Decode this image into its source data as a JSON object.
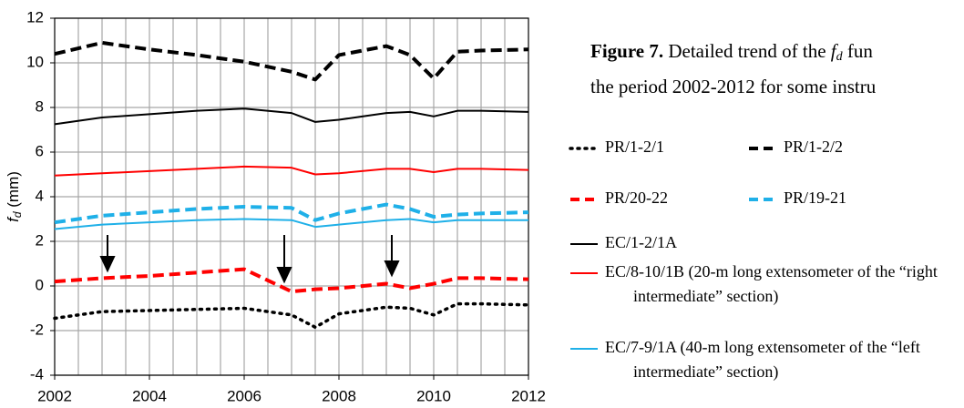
{
  "chart_data": {
    "type": "line",
    "caption": {
      "label": "Figure 7.",
      "text": " Detailed trend of the ",
      "symbol": "f",
      "subscript": "d",
      "text_end": " fun",
      "line2": "the period 2002-2012 for some instru"
    },
    "ylabel": {
      "symbol": "f",
      "subscript": "d",
      "unit": " (mm)"
    },
    "x": [
      2002,
      2003,
      2004,
      2005,
      2006,
      2007,
      2007.5,
      2008,
      2009,
      2009.5,
      2010,
      2010.5,
      2011,
      2012
    ],
    "series": [
      {
        "name": "PR/1-2/1",
        "color": "#000000",
        "dash": "dotted",
        "values": [
          -1.45,
          -1.15,
          -1.1,
          -1.05,
          -1.0,
          -1.3,
          -1.85,
          -1.25,
          -0.95,
          -1.0,
          -1.3,
          -0.8,
          -0.8,
          -0.85
        ]
      },
      {
        "name": "PR/1-2/2",
        "color": "#000000",
        "dash": "dashed",
        "values": [
          10.4,
          10.9,
          10.6,
          10.35,
          10.05,
          9.6,
          9.25,
          10.35,
          10.75,
          10.35,
          9.3,
          10.5,
          10.55,
          10.6
        ]
      },
      {
        "name": "PR/20-22",
        "color": "#ff0000",
        "dash": "dashed",
        "values": [
          0.2,
          0.35,
          0.45,
          0.6,
          0.75,
          -0.25,
          -0.15,
          -0.1,
          0.1,
          -0.1,
          0.1,
          0.35,
          0.35,
          0.3
        ]
      },
      {
        "name": "PR/19-21",
        "color": "#1fb0e8",
        "dash": "dashed",
        "values": [
          2.85,
          3.15,
          3.3,
          3.45,
          3.55,
          3.5,
          2.95,
          3.25,
          3.65,
          3.45,
          3.1,
          3.2,
          3.25,
          3.3
        ]
      },
      {
        "name": "EC/1-2/1A",
        "color": "#000000",
        "dash": "solid",
        "values": [
          7.25,
          7.55,
          7.7,
          7.85,
          7.95,
          7.75,
          7.35,
          7.45,
          7.75,
          7.8,
          7.6,
          7.85,
          7.85,
          7.8
        ]
      },
      {
        "name": "EC/8-10/1B (20-m long extensometer of the “right intermediate” section)",
        "color": "#ff0000",
        "dash": "solid",
        "values": [
          4.95,
          5.05,
          5.15,
          5.25,
          5.35,
          5.3,
          5.0,
          5.05,
          5.25,
          5.25,
          5.1,
          5.25,
          5.25,
          5.2
        ]
      },
      {
        "name": "EC/7-9/1A (40-m long extensometer of the “left intermediate” section)",
        "color": "#1fb0e8",
        "dash": "solid",
        "values": [
          2.55,
          2.75,
          2.85,
          2.95,
          3.0,
          2.95,
          2.65,
          2.75,
          2.95,
          3.0,
          2.85,
          2.95,
          2.95,
          2.95
        ]
      }
    ],
    "xlim": [
      2002,
      2012
    ],
    "xticks": [
      2002,
      2004,
      2006,
      2008,
      2010,
      2012
    ],
    "xgrid_step": 0.5,
    "ylim": [
      -4,
      12
    ],
    "yticks": [
      -4,
      -2,
      0,
      2,
      4,
      6,
      8,
      10,
      12
    ],
    "grid": true
  }
}
